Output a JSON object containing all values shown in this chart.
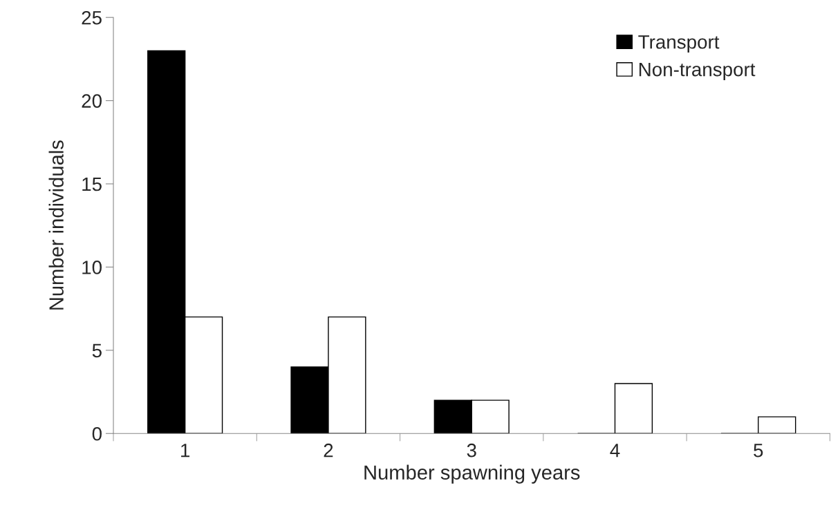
{
  "chart_data": {
    "type": "bar",
    "xlabel": "Number spawning years",
    "ylabel": "Number individuals",
    "categories": [
      "1",
      "2",
      "3",
      "4",
      "5"
    ],
    "series": [
      {
        "name": "Transport",
        "color": "#000000",
        "values": [
          23,
          4,
          2,
          0,
          0
        ]
      },
      {
        "name": "Non-transport",
        "color": "#ffffff",
        "values": [
          7,
          7,
          2,
          3,
          1
        ]
      }
    ],
    "ylim": [
      0,
      25
    ],
    "yticks": [
      0,
      5,
      10,
      15,
      20,
      25
    ],
    "grid": false,
    "legend": "top right"
  }
}
